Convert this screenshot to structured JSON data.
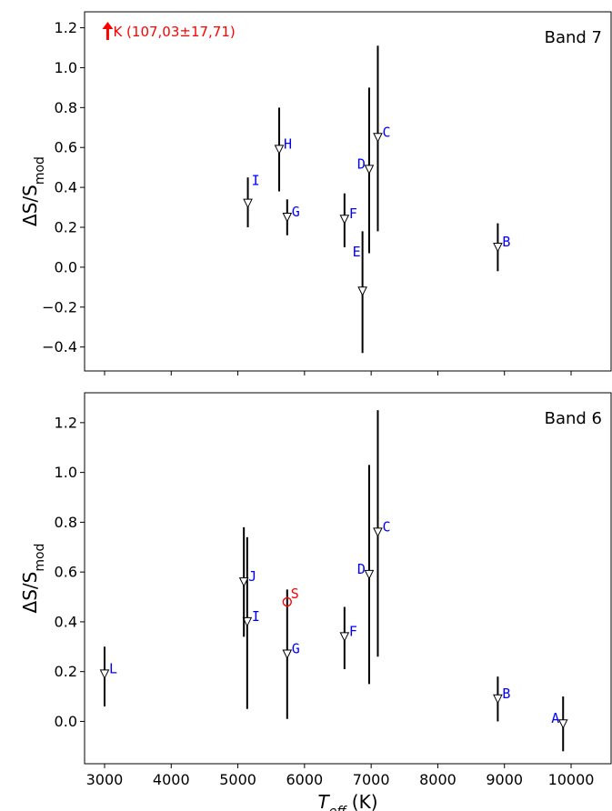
{
  "colors": {
    "point_label": "#0000ff",
    "highlight": "#ff0000",
    "errorbar": "#000000",
    "marker_edge": "#000000",
    "marker_fill": "#ffffff"
  },
  "chart_data": [
    {
      "type": "scatter",
      "panel_label": "Band 7",
      "xlabel": "T_eff (K)",
      "ylabel": "ΔS/S_mod",
      "xlim": [
        2700,
        10600
      ],
      "ylim": [
        -0.52,
        1.28
      ],
      "yticks": [
        -0.4,
        -0.2,
        0.0,
        0.2,
        0.4,
        0.6,
        0.8,
        1.0,
        1.2
      ],
      "ytick_labels": [
        "−0.4",
        "−0.2",
        "0.0",
        "0.2",
        "0.4",
        "0.6",
        "0.8",
        "1.0",
        "1.2"
      ],
      "xticks": [
        3000,
        4000,
        5000,
        6000,
        7000,
        8000,
        9000,
        10000
      ],
      "show_xtick_labels": false,
      "marker": "down-triangle",
      "points": [
        {
          "label": "B",
          "x": 8900,
          "y": 0.1,
          "err_low": -0.02,
          "err_high": 0.22
        },
        {
          "label": "C",
          "x": 7100,
          "y": 0.65,
          "err_low": 0.18,
          "err_high": 1.11
        },
        {
          "label": "D",
          "x": 6970,
          "y": 0.49,
          "err_low": 0.07,
          "err_high": 0.9
        },
        {
          "label": "E",
          "x": 6870,
          "y": -0.12,
          "err_low": -0.43,
          "err_high": 0.18
        },
        {
          "label": "F",
          "x": 6600,
          "y": 0.24,
          "err_low": 0.1,
          "err_high": 0.37
        },
        {
          "label": "G",
          "x": 5740,
          "y": 0.25,
          "err_low": 0.16,
          "err_high": 0.34
        },
        {
          "label": "H",
          "x": 5620,
          "y": 0.59,
          "err_low": 0.38,
          "err_high": 0.8
        },
        {
          "label": "I",
          "x": 5150,
          "y": 0.32,
          "err_low": 0.2,
          "err_high": 0.45
        }
      ],
      "offscale_annotation": {
        "label": "K",
        "text": "K (107,03±17,71)",
        "x": 3170,
        "y": 1.18
      }
    },
    {
      "type": "scatter",
      "panel_label": "Band 6",
      "xlabel": "T_eff (K)",
      "ylabel": "ΔS/S_mod",
      "xlim": [
        2700,
        10600
      ],
      "ylim": [
        -0.17,
        1.32
      ],
      "yticks": [
        0.0,
        0.2,
        0.4,
        0.6,
        0.8,
        1.0,
        1.2
      ],
      "ytick_labels": [
        "0.0",
        "0.2",
        "0.4",
        "0.6",
        "0.8",
        "1.0",
        "1.2"
      ],
      "xticks": [
        3000,
        4000,
        5000,
        6000,
        7000,
        8000,
        9000,
        10000
      ],
      "xtick_labels": [
        "3000",
        "4000",
        "5000",
        "6000",
        "7000",
        "8000",
        "9000",
        "10000"
      ],
      "show_xtick_labels": true,
      "marker": "down-triangle",
      "points": [
        {
          "label": "A",
          "x": 9880,
          "y": -0.01,
          "err_low": -0.12,
          "err_high": 0.1
        },
        {
          "label": "B",
          "x": 8900,
          "y": 0.09,
          "err_low": 0.0,
          "err_high": 0.18
        },
        {
          "label": "C",
          "x": 7100,
          "y": 0.76,
          "err_low": 0.26,
          "err_high": 1.25
        },
        {
          "label": "D",
          "x": 6970,
          "y": 0.59,
          "err_low": 0.15,
          "err_high": 1.03
        },
        {
          "label": "F",
          "x": 6600,
          "y": 0.34,
          "err_low": 0.21,
          "err_high": 0.46
        },
        {
          "label": "G",
          "x": 5740,
          "y": 0.27,
          "err_low": 0.01,
          "err_high": 0.53
        },
        {
          "label": "I",
          "x": 5140,
          "y": 0.4,
          "err_low": 0.05,
          "err_high": 0.74
        },
        {
          "label": "J",
          "x": 5090,
          "y": 0.56,
          "err_low": 0.34,
          "err_high": 0.78
        },
        {
          "label": "L",
          "x": 3000,
          "y": 0.19,
          "err_low": 0.06,
          "err_high": 0.3
        },
        {
          "label": "S",
          "x": 5740,
          "y": 0.48,
          "marker": "circle",
          "color": "#ff0000"
        }
      ]
    }
  ]
}
